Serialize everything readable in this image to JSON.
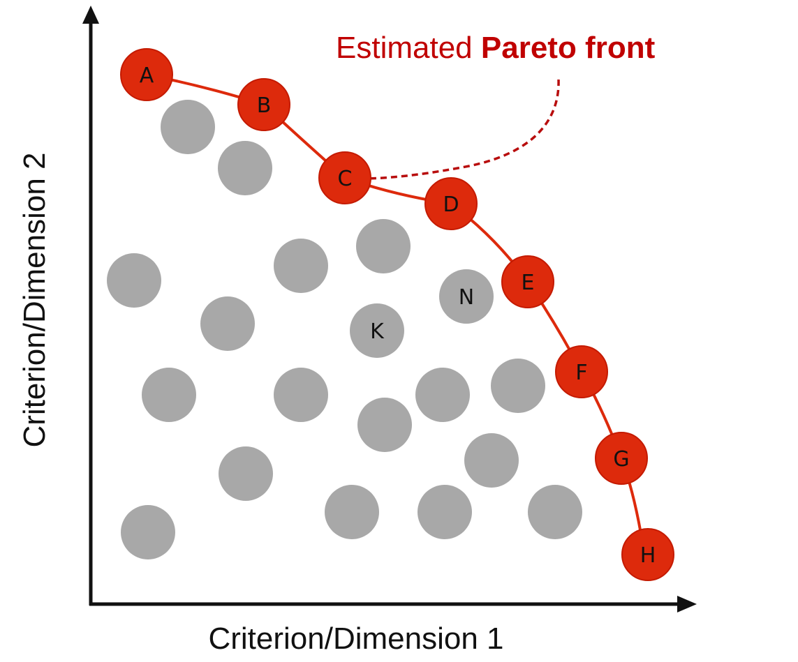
{
  "diagram": {
    "colors": {
      "front": "#dd2a0c",
      "front_stroke": "#c41a00",
      "leader": "#b80d0d",
      "title": "#c00000",
      "dominated": "#a8a8a8",
      "axis": "#111111"
    },
    "axes": {
      "x_label": "Criterion/Dimension 1",
      "y_label": "Criterion/Dimension 2"
    },
    "annotation": {
      "prefix": "Estimated ",
      "emphasis": "Pareto front"
    },
    "pareto_front": [
      {
        "label": "A"
      },
      {
        "label": "B"
      },
      {
        "label": "C"
      },
      {
        "label": "D"
      },
      {
        "label": "E"
      },
      {
        "label": "F"
      },
      {
        "label": "G"
      },
      {
        "label": "H"
      }
    ],
    "dominated_labeled": [
      {
        "label": "N"
      },
      {
        "label": "K"
      }
    ]
  }
}
